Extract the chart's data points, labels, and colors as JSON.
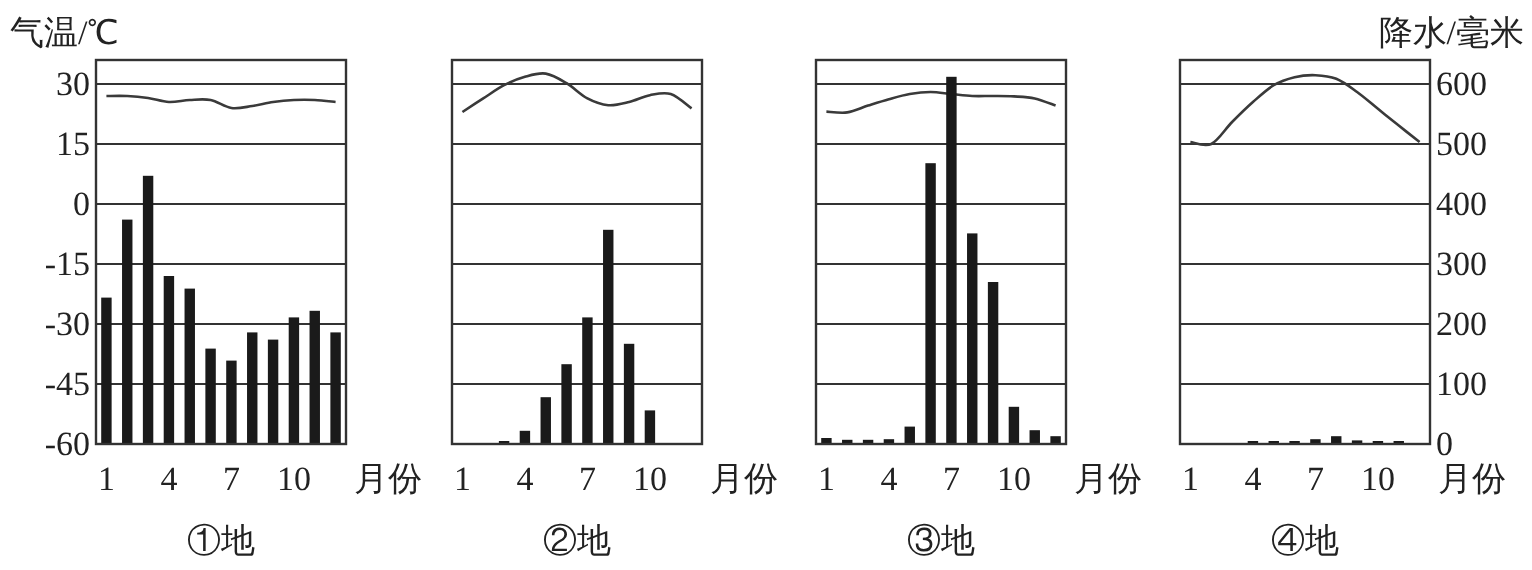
{
  "chart_data": [
    {
      "type": "bar",
      "title": "①地",
      "ylabel": "气温/℃",
      "xlabel": "月份",
      "x": [
        1,
        2,
        3,
        4,
        5,
        6,
        7,
        8,
        9,
        10,
        11,
        12
      ],
      "xlim": [
        0.5,
        12.5
      ],
      "xticks": [
        1,
        4,
        7,
        10
      ],
      "ylim": [
        -60,
        36
      ],
      "yticks": [
        -60,
        -45,
        -30,
        -15,
        0,
        15,
        30
      ],
      "y2lim": [
        0,
        640
      ],
      "grid": "y",
      "tick_labels": [
        "x",
        "y"
      ],
      "series": [
        {
          "type": "line",
          "axis": "y",
          "color": "#3a3a3a",
          "values": [
            27,
            27,
            26.5,
            25.5,
            26,
            26,
            24,
            24.5,
            25.5,
            26,
            26,
            25.5
          ]
        },
        {
          "type": "bar",
          "axis": "y2",
          "color": "#1a1a1a",
          "values": [
            244,
            374,
            447,
            280,
            259,
            159,
            139,
            186,
            174,
            211,
            222,
            186
          ]
        }
      ]
    },
    {
      "type": "bar",
      "title": "②地",
      "xlabel": "月份",
      "x": [
        1,
        2,
        3,
        4,
        5,
        6,
        7,
        8,
        9,
        10,
        11,
        12
      ],
      "xlim": [
        0.5,
        12.5
      ],
      "xticks": [
        1,
        4,
        7,
        10
      ],
      "ylim": [
        -60,
        36
      ],
      "y2lim": [
        0,
        640
      ],
      "grid": "y",
      "tick_labels": [
        "x"
      ],
      "series": [
        {
          "type": "line",
          "axis": "y",
          "color": "#3a3a3a",
          "values": [
            23,
            26.4,
            29.7,
            31.8,
            32.6,
            30.2,
            26.4,
            24.7,
            25.5,
            27.2,
            27.5,
            23.9
          ]
        },
        {
          "type": "bar",
          "axis": "y2",
          "color": "#1a1a1a",
          "values": [
            0,
            0,
            5,
            22,
            78,
            133,
            211,
            357,
            167,
            56,
            0,
            0
          ]
        }
      ]
    },
    {
      "type": "bar",
      "title": "③地",
      "xlabel": "月份",
      "x": [
        1,
        2,
        3,
        4,
        5,
        6,
        7,
        8,
        9,
        10,
        11,
        12
      ],
      "xlim": [
        0.5,
        12.5
      ],
      "xticks": [
        1,
        4,
        7,
        10
      ],
      "ylim": [
        -60,
        36
      ],
      "y2lim": [
        0,
        640
      ],
      "grid": "y",
      "tick_labels": [
        "x"
      ],
      "series": [
        {
          "type": "line",
          "axis": "y",
          "color": "#3a3a3a",
          "values": [
            23.1,
            22.9,
            24.6,
            26.2,
            27.5,
            28,
            27.5,
            27,
            27,
            26.9,
            26.4,
            24.6
          ]
        },
        {
          "type": "bar",
          "axis": "y2",
          "color": "#1a1a1a",
          "values": [
            10,
            7,
            7,
            8,
            29,
            468,
            612,
            351,
            270,
            62,
            23,
            13
          ]
        }
      ]
    },
    {
      "type": "bar",
      "title": "④地",
      "y2label": "降水/毫米",
      "xlabel": "月份",
      "x": [
        1,
        2,
        3,
        4,
        5,
        6,
        7,
        8,
        9,
        10,
        11,
        12
      ],
      "xlim": [
        0.5,
        12.5
      ],
      "xticks": [
        1,
        4,
        7,
        10
      ],
      "ylim": [
        -60,
        36
      ],
      "y2lim": [
        0,
        640
      ],
      "y2ticks": [
        0,
        100,
        200,
        300,
        400,
        500,
        600
      ],
      "grid": "y",
      "tick_labels": [
        "x",
        "y2"
      ],
      "series": [
        {
          "type": "line",
          "axis": "y",
          "color": "#3a3a3a",
          "values": [
            15.5,
            15,
            20.5,
            25.5,
            29.7,
            31.7,
            32.2,
            31.3,
            28,
            23.8,
            19.6,
            15.5
          ]
        },
        {
          "type": "bar",
          "axis": "y2",
          "color": "#1a1a1a",
          "values": [
            0,
            0,
            0,
            5,
            5,
            5,
            8,
            13,
            6,
            5,
            5,
            0
          ]
        }
      ]
    }
  ]
}
